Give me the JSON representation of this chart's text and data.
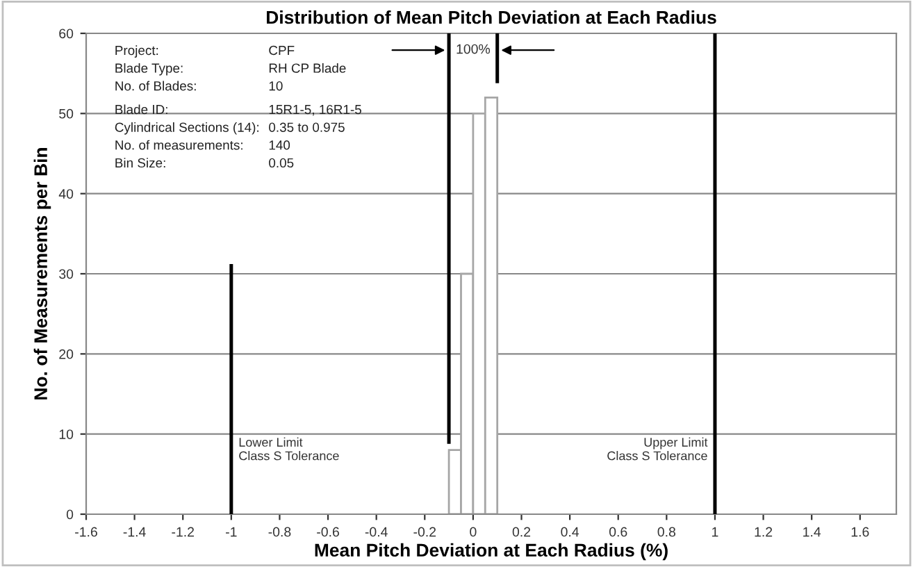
{
  "chart_data": {
    "type": "histogram",
    "title": "Distribution of Mean Pitch Deviation at Each Radius",
    "xlabel": "Mean Pitch Deviation at Each Radius (%)",
    "ylabel": "No. of Measurements per Bin",
    "bins": [
      -0.1,
      -0.05,
      0,
      0.05,
      0.1
    ],
    "values": [
      8,
      30,
      50,
      52
    ],
    "color": "#ffffff",
    "series": [
      {
        "type": "line",
        "x": [
          -1,
          -1
        ],
        "values": [
          0,
          31
        ],
        "color": "#000000"
      },
      {
        "type": "line",
        "x": [
          1,
          1
        ],
        "values": [
          0,
          60
        ],
        "color": "#000000"
      },
      {
        "type": "line",
        "x": [
          -0.1,
          -0.1
        ],
        "values": [
          9,
          60
        ],
        "color": "#000000"
      },
      {
        "type": "line",
        "x": [
          0.1,
          0.1
        ],
        "values": [
          54,
          60
        ],
        "color": "#000000"
      }
    ],
    "xlim": [
      -1.6,
      1.75
    ],
    "xticks": [
      -1.6,
      -1.4,
      -1.2,
      -1,
      -0.8,
      -0.6,
      -0.4,
      -0.2,
      0,
      0.2,
      0.4,
      0.6,
      0.8,
      1,
      1.2,
      1.4,
      1.6
    ],
    "ylim": [
      0,
      60
    ],
    "yticks": [
      0,
      10,
      20,
      30,
      40,
      50,
      60
    ],
    "grid": "y",
    "annotations": [
      {
        "text": "Lower Limit\nClass S Tolerance",
        "x": -1,
        "y": 8
      },
      {
        "text": "Upper Limit\nClass S Tolerance",
        "x": 1,
        "y": 8
      },
      "100%",
      "Project:",
      "CPF",
      "Blade Type:",
      "RH CP Blade",
      "No. of Blades:",
      "10",
      "Blade ID:",
      "15R1-5, 16R1-5",
      "Cylindrical Sections (14):",
      "0.35 to 0.975",
      "No. of measurements:",
      "140",
      "Bin Size:",
      "0.05"
    ]
  }
}
